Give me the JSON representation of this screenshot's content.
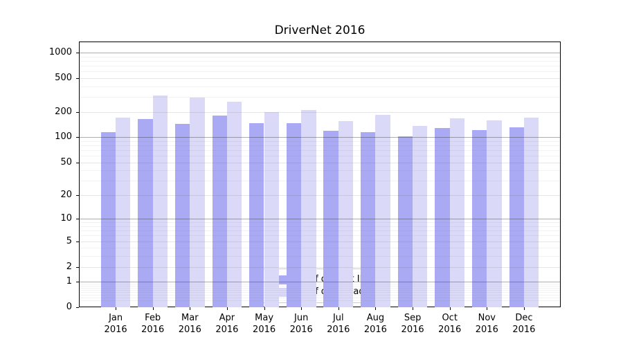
{
  "chart_data": {
    "type": "bar",
    "title": "DriverNet 2016",
    "categories": [
      "Jan 2016",
      "Feb 2016",
      "Mar 2016",
      "Apr 2016",
      "May 2016",
      "Jun 2016",
      "Jul 2016",
      "Aug 2016",
      "Sep 2016",
      "Oct 2016",
      "Nov 2016",
      "Dec 2016"
    ],
    "series": [
      {
        "name": "Nb of distinct IPs",
        "color": "#a9a9f4",
        "values": [
          115,
          166,
          145,
          180,
          146,
          146,
          119,
          114,
          102,
          129,
          122,
          130
        ]
      },
      {
        "name": "Nb of downloads",
        "color": "#dadaf8",
        "values": [
          172,
          315,
          298,
          263,
          199,
          211,
          156,
          183,
          135,
          168,
          159,
          172
        ]
      }
    ],
    "xlabel": "",
    "ylabel": "",
    "yscale": "log1p",
    "yticks": [
      0,
      1,
      2,
      5,
      10,
      20,
      50,
      100,
      200,
      500,
      1000
    ],
    "ylim": [
      0,
      1355
    ],
    "grid": true,
    "legend": {
      "position": "lower-center"
    },
    "colors": {
      "background": "#ffffff",
      "spine": "#000000",
      "grid_major": "#aaaaaa",
      "grid_minor": "#e8e8e8",
      "text": "#000000"
    }
  }
}
